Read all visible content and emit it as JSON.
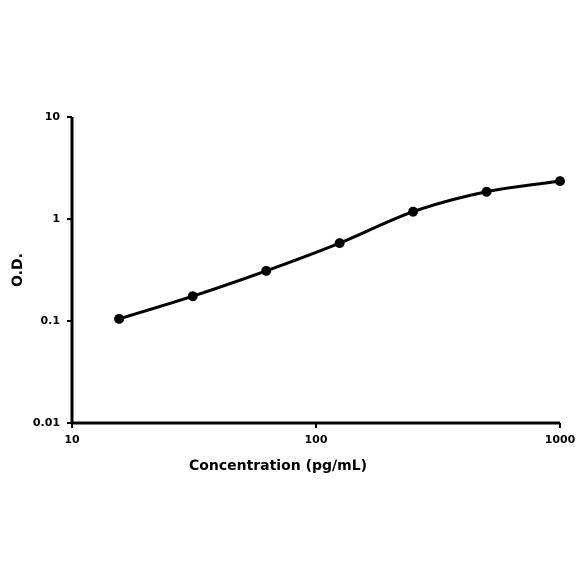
{
  "chart_data": {
    "type": "line",
    "x_label": "Concentration (pg/mL)",
    "y_label": "O.D.",
    "x": [
      15.6,
      31.25,
      62.5,
      125,
      250,
      500,
      1000
    ],
    "series": [
      {
        "color": "#000000",
        "values": [
          0.105,
          0.175,
          0.31,
          0.58,
          1.18,
          1.85,
          2.35
        ]
      }
    ],
    "xscale": "log",
    "yscale": "log",
    "xlim": [
      10,
      1000
    ],
    "ylim": [
      0.01,
      10
    ],
    "xticks": [
      10,
      100,
      1000
    ],
    "yticks": [
      0.01,
      0.1,
      1,
      10
    ]
  }
}
